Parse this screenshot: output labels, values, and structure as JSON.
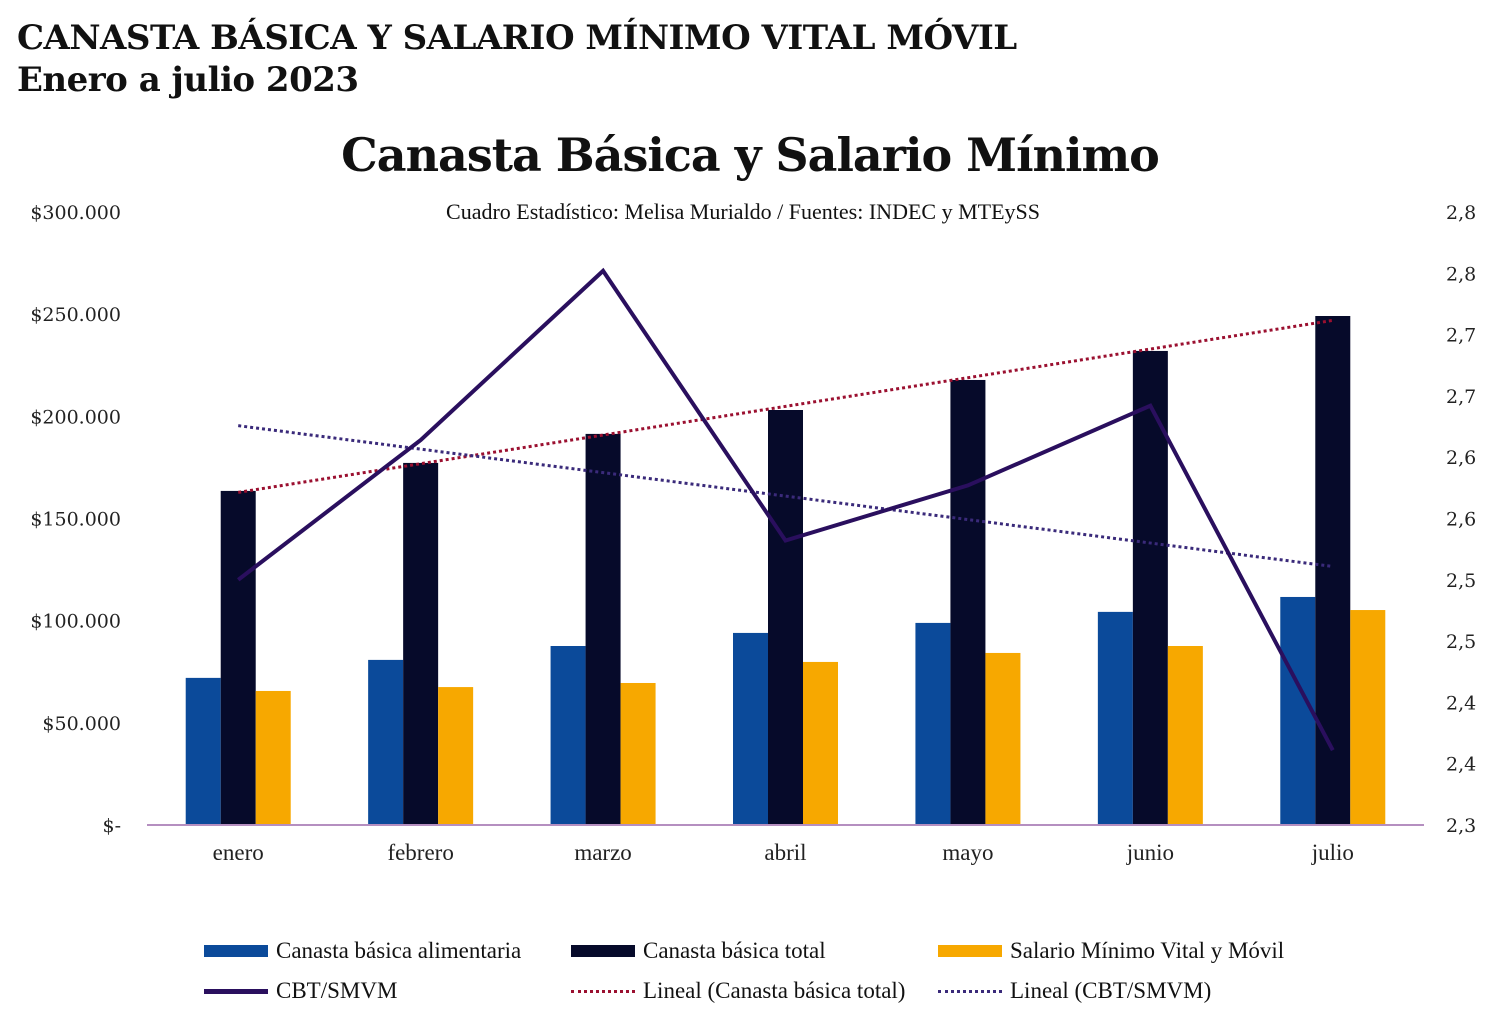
{
  "header": {
    "title": "CANASTA BÁSICA Y SALARIO MÍNIMO VITAL MÓVIL",
    "subtitle": "Enero a julio 2023"
  },
  "chart_data": {
    "type": "bar",
    "title": "Canasta Básica y Salario Mínimo",
    "subtitle": "Cuadro Estadístico: Melisa Murialdo / Fuentes: INDEC y MTEySS",
    "categories": [
      "enero",
      "febrero",
      "marzo",
      "abril",
      "mayo",
      "junio",
      "julio"
    ],
    "series": [
      {
        "name": "Canasta básica alimentaria",
        "kind": "bar",
        "axis": "left",
        "color": "#0b4a9a",
        "values": [
          72000,
          80800,
          87600,
          94000,
          98900,
          104300,
          111600
        ]
      },
      {
        "name": "Canasta básica total",
        "kind": "bar",
        "axis": "left",
        "color": "#060a2a",
        "values": [
          163500,
          177200,
          191400,
          203100,
          217800,
          232000,
          249100
        ]
      },
      {
        "name": "Salario Mínimo Vital y Móvil",
        "kind": "bar",
        "axis": "left",
        "color": "#f7a800",
        "values": [
          65600,
          67500,
          69500,
          79800,
          84200,
          87600,
          105200
        ]
      },
      {
        "name": "CBT/SMVM",
        "kind": "line",
        "axis": "right",
        "color": "#2a0f5e",
        "values": [
          2.5,
          2.614,
          2.752,
          2.532,
          2.577,
          2.642,
          2.361
        ]
      }
    ],
    "trendlines": [
      {
        "name": "Lineal (Canasta básica total)",
        "of": "Canasta básica total",
        "color": "#9b1030",
        "style": "dotted"
      },
      {
        "name": "Lineal (CBT/SMVM)",
        "of": "CBT/SMVM",
        "color": "#3a2a7a",
        "style": "dotted"
      }
    ],
    "left_axis": {
      "ylim": [
        0,
        300000
      ],
      "tick_labels": [
        "$300.000",
        "$250.000",
        "$200.000",
        "$150.000",
        "$100.000",
        "$50.000",
        "$-"
      ]
    },
    "right_axis": {
      "ylim": [
        2.3,
        2.8
      ],
      "tick_labels": [
        "2,8",
        "2,8",
        "2,7",
        "2,7",
        "2,6",
        "2,6",
        "2,5",
        "2,5",
        "2,4",
        "2,4",
        "2,3"
      ]
    },
    "grid": false,
    "legend": "bottom"
  }
}
